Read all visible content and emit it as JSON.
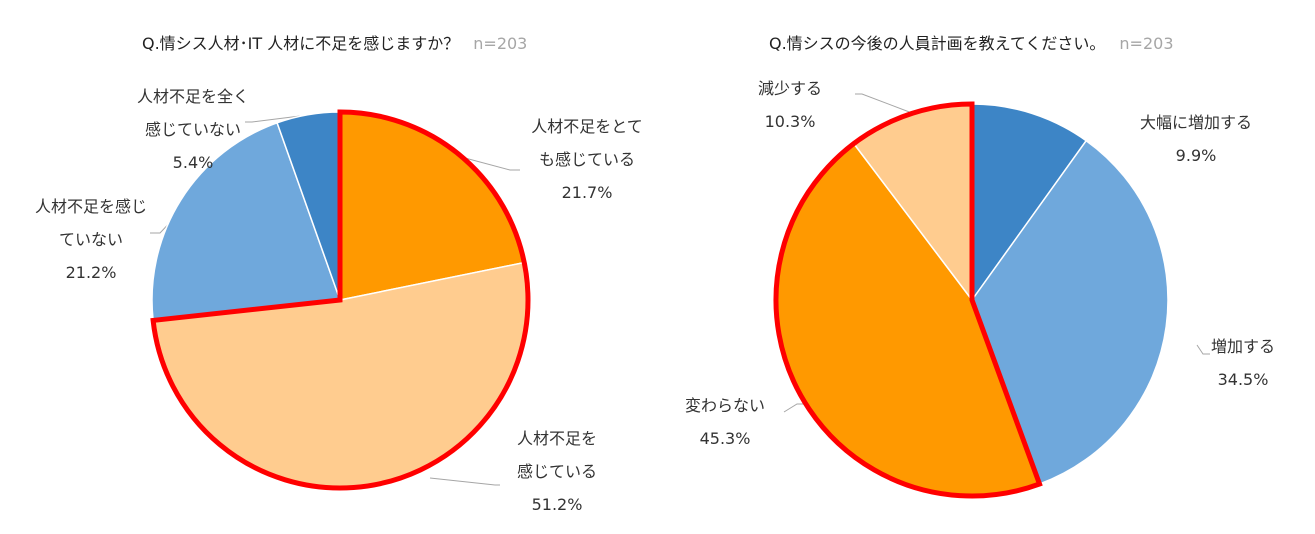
{
  "chart_data": [
    {
      "type": "pie",
      "title": "Q.情シス人材･IT 人材に不足を感じますか？",
      "n_label": "n=203",
      "slices": [
        {
          "label": "人材不足をとても感じている",
          "label_lines": [
            "人材不足をとて",
            "も感じている"
          ],
          "pct_text": "21.7%",
          "value": 21.7,
          "color": "#ff9900",
          "highlight": true
        },
        {
          "label": "人材不足を感じている",
          "label_lines": [
            "人材不足を",
            "感じている"
          ],
          "pct_text": "51.2%",
          "value": 51.2,
          "color": "#ffcc8f",
          "highlight": true
        },
        {
          "label": "人材不足を感じていない",
          "label_lines": [
            "人材不足を感じ",
            "ていない"
          ],
          "pct_text": "21.2%",
          "value": 21.2,
          "color": "#6fa8dc",
          "highlight": false
        },
        {
          "label": "人材不足を全く感じていない",
          "label_lines": [
            "人材不足を全く",
            "感じていない"
          ],
          "pct_text": "5.4%",
          "value": 5.4,
          "color": "#3d85c6",
          "highlight": false
        }
      ]
    },
    {
      "type": "pie",
      "title": "Q.情シスの今後の人員計画を教えてください。",
      "n_label": "n=203",
      "slices": [
        {
          "label": "大幅に増加する",
          "label_lines": [
            "大幅に増加する"
          ],
          "pct_text": "9.9%",
          "value": 9.9,
          "color": "#3d85c6",
          "highlight": false
        },
        {
          "label": "増加する",
          "label_lines": [
            "増加する"
          ],
          "pct_text": "34.5%",
          "value": 34.5,
          "color": "#6fa8dc",
          "highlight": false
        },
        {
          "label": "変わらない",
          "label_lines": [
            "変わらない"
          ],
          "pct_text": "45.3%",
          "value": 45.3,
          "color": "#ff9900",
          "highlight": true
        },
        {
          "label": "減少する",
          "label_lines": [
            "減少する"
          ],
          "pct_text": "10.3%",
          "value": 10.3,
          "color": "#ffcc8f",
          "highlight": true
        }
      ]
    }
  ]
}
